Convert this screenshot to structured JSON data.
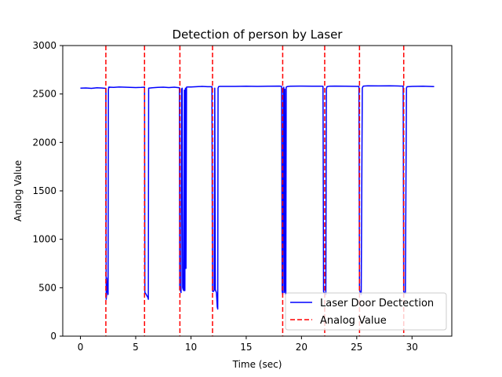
{
  "chart_data": {
    "type": "line",
    "title": "Detection of person by Laser",
    "xlabel": "Time (sec)",
    "ylabel": "Analog Value",
    "xlim": [
      -1.6,
      33.6
    ],
    "ylim": [
      0,
      3000
    ],
    "xticks": [
      0,
      5,
      10,
      15,
      20,
      25,
      30
    ],
    "yticks": [
      0,
      500,
      1000,
      1500,
      2000,
      2500,
      3000
    ],
    "grid": false,
    "legend_position": "lower-right",
    "series": [
      {
        "name": "Laser Door Dectection",
        "color": "#0000ff",
        "style": "solid",
        "x": [
          0,
          0.5,
          1.0,
          1.5,
          2.0,
          2.3,
          2.33,
          2.38,
          2.42,
          2.46,
          2.5,
          2.53,
          2.56,
          2.6,
          2.63,
          2.66,
          3.0,
          3.5,
          4.0,
          4.5,
          5.0,
          5.5,
          5.8,
          5.83,
          5.9,
          6.0,
          6.1,
          6.14,
          6.17,
          6.5,
          7.0,
          7.5,
          8.0,
          8.5,
          8.95,
          8.98,
          9.05,
          9.1,
          9.15,
          9.2,
          9.25,
          9.3,
          9.35,
          9.4,
          9.45,
          9.5,
          9.55,
          9.6,
          9.7,
          10.0,
          10.5,
          11.0,
          11.5,
          11.9,
          11.95,
          12.0,
          12.1,
          12.15,
          12.2,
          12.3,
          12.38,
          12.42,
          12.45,
          12.5,
          12.6,
          13.0,
          14.0,
          15.0,
          16.0,
          17.0,
          18.0,
          18.2,
          18.25,
          18.3,
          18.35,
          18.4,
          18.43,
          18.45,
          18.5,
          18.55,
          18.58,
          18.62,
          18.7,
          19.0,
          20.0,
          21.0,
          21.9,
          21.95,
          22.0,
          22.1,
          22.2,
          22.25,
          22.3,
          22.5,
          23.0,
          24.0,
          25.0,
          25.2,
          25.25,
          25.3,
          25.4,
          25.5,
          25.55,
          25.6,
          26.0,
          27.0,
          28.0,
          29.0,
          29.2,
          29.25,
          29.3,
          29.4,
          29.5,
          29.55,
          29.6,
          30.0,
          31.0,
          31.5,
          32.0
        ],
        "y": [
          2560,
          2562,
          2558,
          2565,
          2561,
          2558,
          380,
          450,
          520,
          600,
          430,
          2540,
          2570,
          2572,
          2568,
          2570,
          2568,
          2572,
          2570,
          2568,
          2566,
          2568,
          2570,
          450,
          440,
          420,
          400,
          380,
          2560,
          2565,
          2568,
          2570,
          2566,
          2570,
          2565,
          480,
          470,
          450,
          2550,
          2560,
          500,
          480,
          470,
          2540,
          470,
          2560,
          700,
          2570,
          2572,
          2572,
          2575,
          2578,
          2575,
          2575,
          470,
          460,
          470,
          2560,
          480,
          450,
          300,
          280,
          2560,
          2575,
          2578,
          2578,
          2578,
          2580,
          2578,
          2580,
          2582,
          2578,
          470,
          430,
          2560,
          2570,
          450,
          500,
          2550,
          460,
          430,
          2570,
          2576,
          2580,
          2582,
          2580,
          2580,
          2578,
          460,
          440,
          430,
          2550,
          2575,
          2580,
          2582,
          2580,
          2578,
          2578,
          480,
          460,
          430,
          2560,
          2575,
          2582,
          2585,
          2583,
          2584,
          2582,
          2582,
          460,
          450,
          440,
          2560,
          2575,
          2575,
          2578,
          2580,
          2578,
          2576
        ]
      },
      {
        "name": "Analog Value",
        "color": "#ff0000",
        "style": "dashed",
        "vlines": [
          2.3,
          5.8,
          9.0,
          11.95,
          18.3,
          22.1,
          25.25,
          29.25
        ]
      }
    ]
  }
}
